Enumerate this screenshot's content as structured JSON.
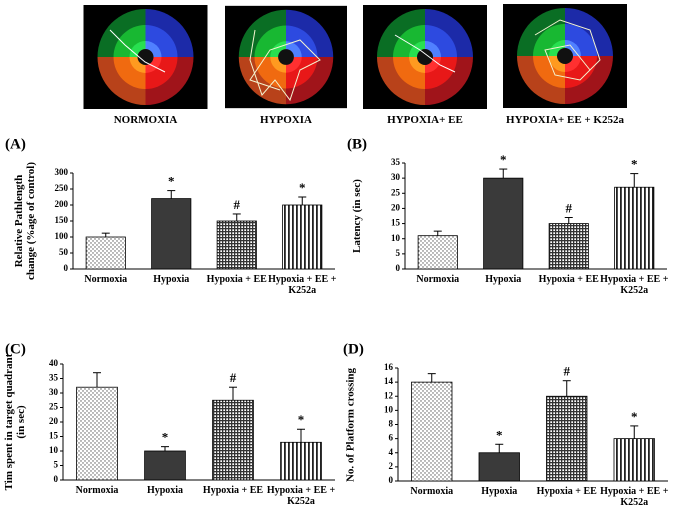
{
  "images": [
    {
      "label": "NORMOXIA"
    },
    {
      "label": "HYPOXIA"
    },
    {
      "label": "HYPOXIA+ EE"
    },
    {
      "label": "HYPOXIA+ EE + K252a"
    }
  ],
  "chart_data": [
    {
      "type": "bar",
      "panel": "(A)",
      "ylabel": "Relative Pathlength change (%age of control)",
      "categories": [
        "Normoxia",
        "Hypoxia",
        "Hypoxia + EE",
        "Hypoxia + EE + K252a"
      ],
      "values": [
        100,
        220,
        150,
        200
      ],
      "errors": [
        12,
        25,
        22,
        25
      ],
      "annotations": [
        null,
        "*",
        "#",
        "*"
      ],
      "ylim": [
        0,
        300
      ],
      "yticks": [
        0,
        50,
        100,
        150,
        200,
        250,
        300
      ]
    },
    {
      "type": "bar",
      "panel": "(B)",
      "ylabel": "Latency (in sec)",
      "categories": [
        "Normoxia",
        "Hypoxia",
        "Hypoxia + EE",
        "Hypoxia + EE + K252a"
      ],
      "values": [
        11,
        30,
        15,
        27
      ],
      "errors": [
        1.5,
        3,
        2,
        4.5
      ],
      "annotations": [
        null,
        "*",
        "#",
        "*"
      ],
      "ylim": [
        0,
        35
      ],
      "yticks": [
        0,
        5,
        10,
        15,
        20,
        25,
        30,
        35
      ]
    },
    {
      "type": "bar",
      "panel": "(C)",
      "ylabel": "Tim spent in target quadrant  (in sec)",
      "categories": [
        "Normoxia",
        "Hypoxia",
        "Hypoxia + EE",
        "Hypoxia + EE + K252a"
      ],
      "values": [
        32,
        10,
        27.5,
        13
      ],
      "errors": [
        5,
        1.5,
        4.5,
        4.5
      ],
      "annotations": [
        null,
        "*",
        "#",
        "*"
      ],
      "ylim": [
        0,
        40
      ],
      "yticks": [
        0,
        5,
        10,
        15,
        20,
        25,
        30,
        35,
        40
      ]
    },
    {
      "type": "bar",
      "panel": "(D)",
      "ylabel": "No. of Platform crossing",
      "categories": [
        "Normoxia",
        "Hypoxia",
        "Hypoxia + EE",
        "Hypoxia + EE + K252a"
      ],
      "values": [
        14,
        4,
        12,
        6
      ],
      "errors": [
        1.2,
        1.2,
        2.2,
        1.8
      ],
      "annotations": [
        null,
        "*",
        "#",
        "*"
      ],
      "ylim": [
        0,
        16
      ],
      "yticks": [
        0,
        2,
        4,
        6,
        8,
        10,
        12,
        14,
        16
      ]
    }
  ]
}
